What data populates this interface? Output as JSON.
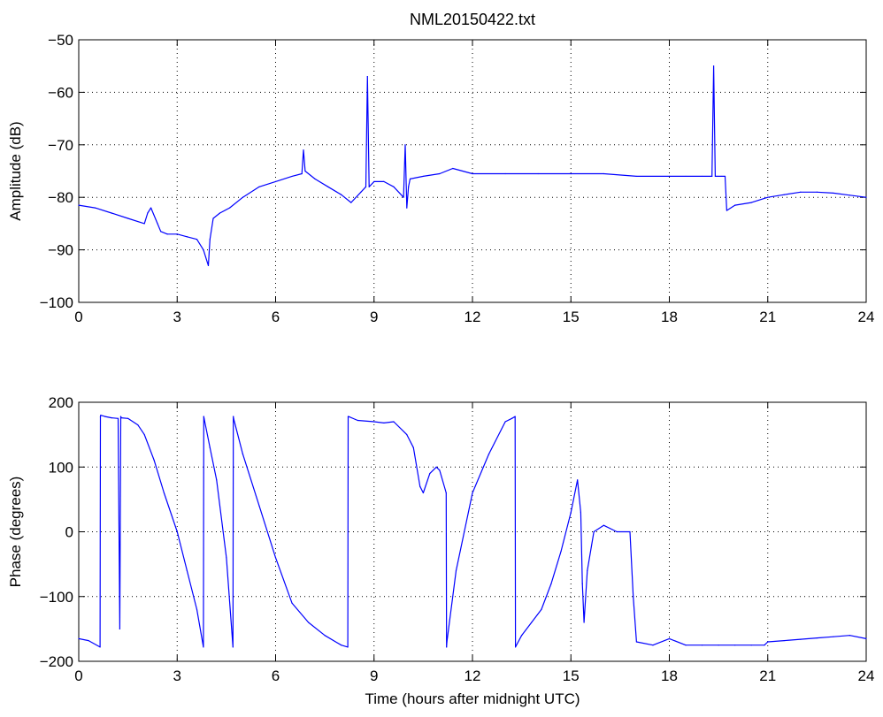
{
  "figure_title": "NML20150422.txt",
  "colors": {
    "line": "#0000ff",
    "axes": "#000000",
    "grid": "#000000",
    "background": "#ffffff"
  },
  "chart_data": [
    {
      "type": "line",
      "title": "NML20150422.txt",
      "xlabel": "",
      "ylabel": "Amplitude (dB)",
      "xlim": [
        0,
        24
      ],
      "ylim": [
        -100,
        -50
      ],
      "xticks": [
        "0",
        "3",
        "6",
        "9",
        "12",
        "15",
        "18",
        "21",
        "24"
      ],
      "yticks": [
        "−50",
        "−60",
        "−70",
        "−80",
        "−90",
        "−100"
      ],
      "grid": true,
      "series": [
        {
          "x": [
            0,
            0.5,
            1,
            1.5,
            2,
            2.1,
            2.2,
            2.4,
            2.5,
            2.7,
            3,
            3.3,
            3.6,
            3.8,
            3.95,
            4.0,
            4.1,
            4.3,
            4.6,
            5,
            5.5,
            6,
            6.5,
            6.8,
            6.85,
            6.9,
            7.2,
            7.6,
            8.0,
            8.3,
            8.6,
            8.75,
            8.8,
            8.85,
            9.0,
            9.3,
            9.6,
            9.9,
            9.95,
            10.0,
            10.05,
            10.1,
            10.5,
            11.0,
            11.4,
            12,
            13,
            14,
            15,
            16,
            17,
            18,
            18.5,
            19,
            19.3,
            19.35,
            19.4,
            19.6,
            19.7,
            19.75,
            20.0,
            20.5,
            21,
            21.5,
            22,
            22.5,
            23,
            23.5,
            24
          ],
          "y": [
            -81.5,
            -82,
            -83,
            -84,
            -85,
            -83,
            -82,
            -85,
            -86.5,
            -87,
            -87,
            -87.5,
            -88,
            -90,
            -93,
            -88,
            -84,
            -83,
            -82,
            -80,
            -78,
            -77,
            -76,
            -75.5,
            -71,
            -75,
            -76.5,
            -78,
            -79.5,
            -81,
            -79,
            -78,
            -57,
            -78,
            -77,
            -77,
            -78,
            -80,
            -70,
            -82,
            -78,
            -76.5,
            -76,
            -75.5,
            -74.5,
            -75.5,
            -75.5,
            -75.5,
            -75.5,
            -75.5,
            -76,
            -76,
            -76,
            -76,
            -76,
            -55,
            -76,
            -76,
            -76,
            -82.5,
            -81.5,
            -81,
            -80,
            -79.5,
            -79,
            -79,
            -79.2,
            -79.6,
            -80
          ]
        }
      ]
    },
    {
      "type": "line",
      "title": "",
      "xlabel": "Time (hours after midnight UTC)",
      "ylabel": "Phase (degrees)",
      "xlim": [
        0,
        24
      ],
      "ylim": [
        -200,
        200
      ],
      "xticks": [
        "0",
        "3",
        "6",
        "9",
        "12",
        "15",
        "18",
        "21",
        "24"
      ],
      "yticks": [
        "200",
        "100",
        "0",
        "−100",
        "−200"
      ],
      "grid": true,
      "series": [
        {
          "x": [
            0,
            0.3,
            0.65,
            0.66,
            0.67,
            0.8,
            1.0,
            1.2,
            1.25,
            1.28,
            1.3,
            1.5,
            1.8,
            2.0,
            2.3,
            2.6,
            3.0,
            3.3,
            3.6,
            3.8,
            3.81,
            3.82,
            4.0,
            4.2,
            4.5,
            4.7,
            4.71,
            4.72,
            5.0,
            5.5,
            6.0,
            6.5,
            7.0,
            7.5,
            8.0,
            8.2,
            8.21,
            8.22,
            8.5,
            9.0,
            9.3,
            9.6,
            10.0,
            10.2,
            10.4,
            10.5,
            10.7,
            10.9,
            11.0,
            11.2,
            11.21,
            11.22,
            11.5,
            12.0,
            12.5,
            13.0,
            13.2,
            13.3,
            13.31,
            13.5,
            13.8,
            14.1,
            14.4,
            14.7,
            15.0,
            15.2,
            15.3,
            15.35,
            15.4,
            15.5,
            15.7,
            16.0,
            16.4,
            16.8,
            16.9,
            17.0,
            17.5,
            18.0,
            18.5,
            19.0,
            19.5,
            20.0,
            20.5,
            20.9,
            21.0,
            21.5,
            22.0,
            22.5,
            23.0,
            23.5,
            24.0
          ],
          "y": [
            -165,
            -168,
            -178,
            178,
            180,
            178,
            176,
            175,
            -150,
            178,
            176,
            175,
            165,
            150,
            110,
            60,
            0,
            -60,
            -120,
            -178,
            178,
            175,
            130,
            80,
            -40,
            -178,
            178,
            175,
            120,
            40,
            -40,
            -110,
            -140,
            -160,
            -175,
            -178,
            178,
            178,
            172,
            170,
            168,
            170,
            150,
            130,
            70,
            60,
            90,
            100,
            95,
            60,
            -178,
            -170,
            -60,
            60,
            120,
            170,
            175,
            178,
            -178,
            -160,
            -140,
            -120,
            -80,
            -30,
            30,
            80,
            30,
            -80,
            -140,
            -60,
            0,
            10,
            0,
            0,
            -100,
            -170,
            -175,
            -165,
            -175,
            -175,
            -175,
            -175,
            -175,
            -175,
            -170,
            -168,
            -166,
            -164,
            -162,
            -160,
            -165
          ]
        }
      ]
    }
  ]
}
